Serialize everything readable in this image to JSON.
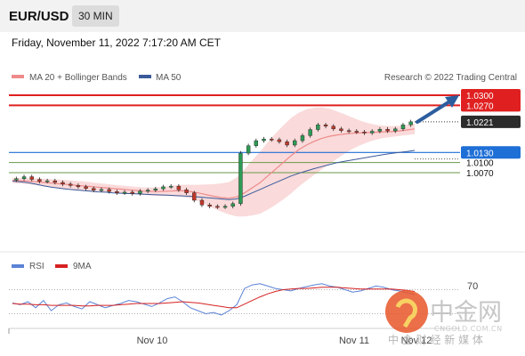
{
  "header": {
    "symbol": "EUR/USD",
    "interval": "30 MIN"
  },
  "datetime": "Friday, November 11, 2022 7:17:20 AM CET",
  "credit": "Research © 2022 Trading Central",
  "colors": {
    "resistance": "#e02020",
    "support": "#6a9a4a",
    "pivot": "#1e6fd6",
    "bb_fill": "#fadada",
    "ma50": "#3a5a9a",
    "ma20": "#ef8a8a",
    "arrow": "#2c5e9e",
    "rsi": "#5b83d6",
    "rsi_ma": "#d62020"
  },
  "watermark": {
    "logo_text": "中金网",
    "domain": "CNGOLD.COM.CN",
    "tagline": "中 金 财 经 新 媒 体"
  },
  "chart_data": [
    {
      "type": "candlestick",
      "legend": [
        "MA 20 + Bollinger Bands",
        "MA 50"
      ],
      "x_tick_labels": [
        "Nov 10",
        "Nov 11",
        "Nov 12"
      ],
      "levels": [
        {
          "value": "1.0300",
          "kind": "resistance",
          "style": "solid"
        },
        {
          "value": "1.0270",
          "kind": "resistance",
          "style": "solid"
        },
        {
          "value": "1.0221",
          "kind": "last",
          "style": "dotted"
        },
        {
          "value": "1.0130",
          "kind": "pivot",
          "style": "solid"
        },
        {
          "value": "1.0100",
          "kind": "support",
          "style": "solid"
        },
        {
          "value": "1.0070",
          "kind": "support",
          "style": "solid"
        }
      ],
      "ylim": [
        0.9855,
        1.032
      ],
      "close_path": [
        1.0048,
        1.0052,
        1.0058,
        1.005,
        1.0044,
        1.0046,
        1.0041,
        1.0036,
        1.0032,
        1.0028,
        1.0023,
        1.0018,
        1.002,
        1.0014,
        1.001,
        1.0012,
        1.0008,
        1.0015,
        1.0018,
        1.0022,
        1.0028,
        1.003,
        1.0019,
        1.001,
        0.9988,
        0.9974,
        0.997,
        0.9968,
        0.997,
        0.9978,
        1.0128,
        1.015,
        1.0165,
        1.017,
        1.0168,
        1.0162,
        1.0152,
        1.0165,
        1.018,
        1.0198,
        1.0212,
        1.0208,
        1.02,
        1.0195,
        1.0193,
        1.0191,
        1.0188,
        1.0193,
        1.0199,
        1.0194,
        1.02,
        1.0212,
        1.0221
      ],
      "ma50": [
        1.0045,
        1.0043,
        1.004,
        1.0036,
        1.0031,
        1.0027,
        1.0024,
        1.0021,
        1.0019,
        1.0017,
        1.0015,
        1.0013,
        1.0012,
        1.001,
        1.0009,
        1.0008,
        1.0007,
        1.0006,
        1.0005,
        1.0004,
        1.0003,
        1.0002,
        1.0001,
        1.0,
        0.9998,
        0.9996,
        0.9994,
        0.9992,
        0.999,
        0.9992,
        1.0,
        1.001,
        1.002,
        1.003,
        1.004,
        1.005,
        1.006,
        1.0068,
        1.0075,
        1.0082,
        1.0088,
        1.0094,
        1.01,
        1.0104,
        1.0108,
        1.0112,
        1.0116,
        1.012,
        1.0124,
        1.0127,
        1.013,
        1.0133,
        1.0136
      ],
      "ma20": [
        1.0047,
        1.0046,
        1.0045,
        1.0043,
        1.0041,
        1.0039,
        1.0037,
        1.0035,
        1.0033,
        1.0031,
        1.0029,
        1.0027,
        1.0025,
        1.0023,
        1.0021,
        1.0019,
        1.0017,
        1.0015,
        1.0014,
        1.0014,
        1.0015,
        1.0016,
        1.0016,
        1.0014,
        1.001,
        1.0005,
        1.0,
        0.9996,
        0.9994,
        0.9998,
        1.001,
        1.0025,
        1.004,
        1.006,
        1.008,
        1.01,
        1.012,
        1.0138,
        1.0152,
        1.0163,
        1.0172,
        1.0178,
        1.0182,
        1.0185,
        1.0187,
        1.0188,
        1.0189,
        1.019,
        1.0191,
        1.0192,
        1.0194,
        1.0197,
        1.02
      ],
      "bb_width": [
        0.0008,
        0.0008,
        0.0009,
        0.001,
        0.0011,
        0.0012,
        0.0012,
        0.0013,
        0.0013,
        0.0013,
        0.0013,
        0.0012,
        0.0012,
        0.0011,
        0.0011,
        0.0011,
        0.0011,
        0.0011,
        0.0012,
        0.0013,
        0.0014,
        0.0016,
        0.0018,
        0.002,
        0.0024,
        0.003,
        0.0036,
        0.0042,
        0.0048,
        0.0058,
        0.007,
        0.0082,
        0.0092,
        0.01,
        0.0106,
        0.011,
        0.0112,
        0.011,
        0.0106,
        0.01,
        0.0092,
        0.0082,
        0.007,
        0.0058,
        0.0046,
        0.0036,
        0.0028,
        0.0022,
        0.0018,
        0.0016,
        0.0015,
        0.0015,
        0.0016
      ]
    },
    {
      "type": "line",
      "legend": [
        "RSI",
        "9MA"
      ],
      "levels": [
        {
          "value": "70"
        }
      ],
      "ylim": [
        10,
        90
      ],
      "rsi": [
        48,
        45,
        50,
        40,
        52,
        35,
        45,
        48,
        42,
        38,
        50,
        45,
        40,
        44,
        47,
        52,
        50,
        46,
        42,
        48,
        55,
        58,
        50,
        40,
        35,
        30,
        32,
        28,
        35,
        45,
        72,
        78,
        80,
        76,
        72,
        70,
        68,
        72,
        75,
        78,
        80,
        76,
        74,
        70,
        66,
        68,
        72,
        76,
        74,
        70,
        68,
        65,
        62
      ],
      "rsi_ma": [
        47,
        46,
        46,
        45,
        45,
        44,
        44,
        44,
        44,
        43,
        43,
        44,
        44,
        44,
        45,
        46,
        47,
        47,
        47,
        47,
        48,
        49,
        50,
        49,
        48,
        46,
        44,
        42,
        40,
        40,
        46,
        52,
        58,
        63,
        67,
        70,
        71,
        72,
        72,
        73,
        74,
        74,
        74,
        73,
        72,
        71,
        71,
        71,
        71,
        71,
        70,
        69,
        67
      ]
    }
  ]
}
